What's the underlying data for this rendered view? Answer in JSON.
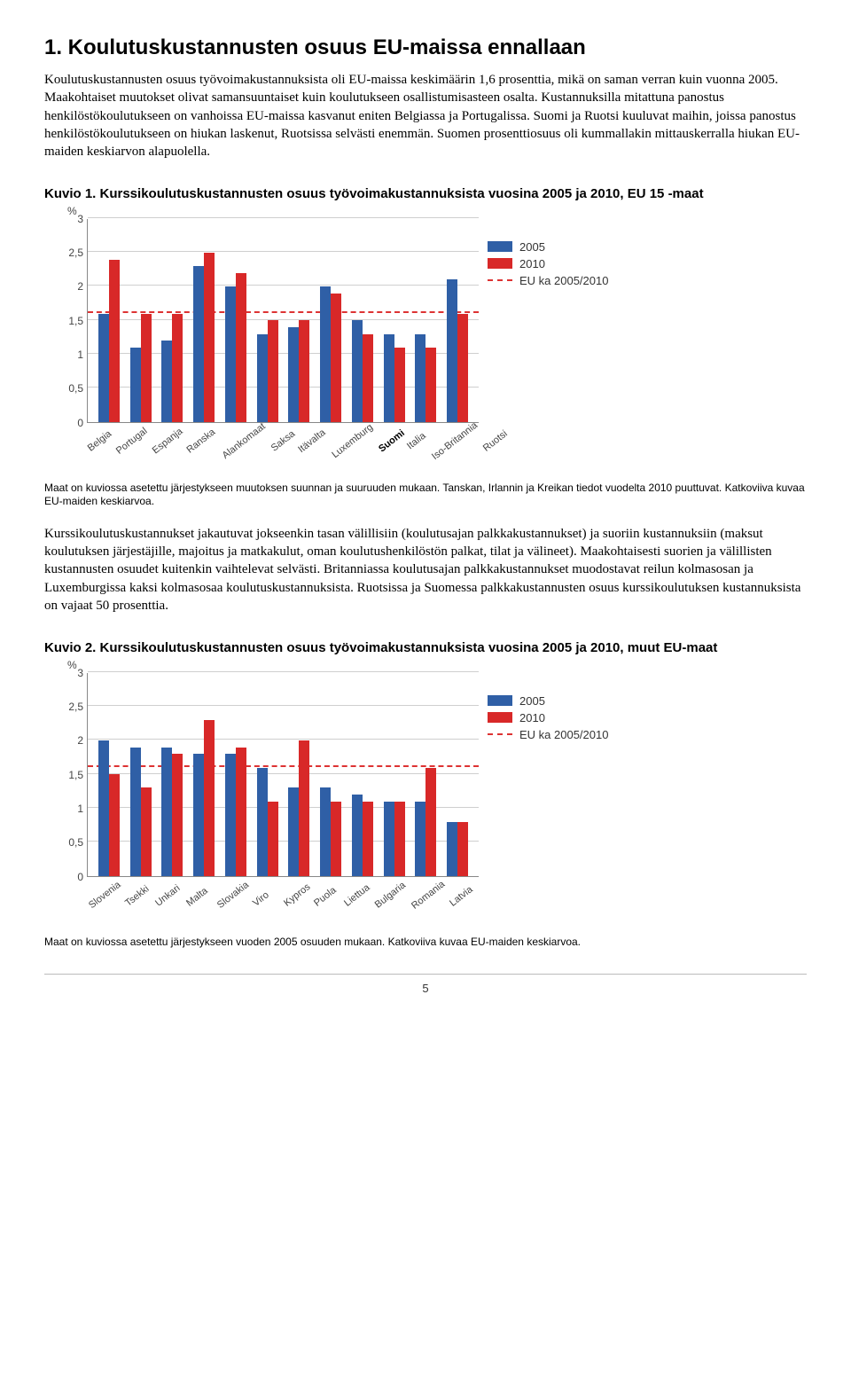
{
  "section": {
    "title": "1. Koulutuskustannusten osuus EU-maissa ennallaan",
    "para1": "Koulutuskustannusten osuus työvoimakustannuksista oli EU-maissa keskimäärin 1,6 prosenttia, mikä on saman verran kuin vuonna 2005. Maakohtaiset muutokset olivat samansuuntaiset kuin koulutukseen osallistumisasteen osalta. Kustannuksilla mitattuna panostus henkilöstökoulutukseen on vanhoissa EU-maissa kasvanut eniten Belgiassa ja Portugalissa. Suomi ja Ruotsi kuuluvat maihin, joissa panostus henkilöstökoulutukseen on hiukan laskenut, Ruotsissa selvästi enemmän. Suomen prosenttiosuus oli kummallakin mittauskerralla hiukan EU-maiden keskiarvon alapuolella.",
    "para2": "Kurssikoulutuskustannukset jakautuvat jokseenkin tasan välillisiin (koulutusajan palkkakustannukset) ja suoriin kustannuksiin (maksut koulutuksen järjestäjille, majoitus ja matkakulut, oman koulutushenkilöstön palkat, tilat ja välineet). Maakohtaisesti suorien ja välillisten kustannusten osuudet kuitenkin vaihtelevat selvästi. Britanniassa koulutusajan palkkakustannukset muodostavat reilun kolmasosan ja Luxemburgissa kaksi kolmasosaa koulutuskustannuksista. Ruotsissa ja Suomessa palkkakustannusten osuus kurssikoulutuksen kustannuksista on vajaat 50 prosenttia."
  },
  "fig1": {
    "title": "Kuvio 1. Kurssikoulutuskustannusten osuus työvoimakustannuksista vuosina 2005 ja 2010, EU 15 -maat",
    "caption": "Maat on kuviossa asetettu järjestykseen muutoksen suunnan ja suuruuden mukaan. Tanskan, Irlannin ja Kreikan tiedot vuodelta 2010 puuttuvat. Katkoviiva kuvaa EU-maiden keskiarvoa.",
    "ylabel": "%",
    "ymax": 3,
    "ytick_step": 0.5,
    "eu_avg": 1.6,
    "colors": {
      "y2005": "#2f5fa6",
      "y2010": "#d82828"
    },
    "legend": [
      "2005",
      "2010",
      "EU ka 2005/2010"
    ],
    "categories": [
      "Belgia",
      "Portugal",
      "Espanja",
      "Ranska",
      "Alankomaat",
      "Saksa",
      "Itävalta",
      "Luxemburg",
      "Suomi",
      "Italia",
      "Iso-Britannia",
      "Ruotsi"
    ],
    "bold_category": "Suomi",
    "y2005": [
      1.6,
      1.1,
      1.2,
      2.3,
      2.0,
      1.3,
      1.4,
      2.0,
      1.5,
      1.3,
      1.3,
      2.1
    ],
    "y2010": [
      2.4,
      1.6,
      1.6,
      2.5,
      2.2,
      1.5,
      1.5,
      1.9,
      1.3,
      1.1,
      1.1,
      1.6
    ]
  },
  "fig2": {
    "title": "Kuvio 2. Kurssikoulutuskustannusten osuus työvoimakustannuksista vuosina 2005 ja 2010, muut EU-maat",
    "caption": "Maat on kuviossa asetettu järjestykseen vuoden 2005 osuuden mukaan. Katkoviiva kuvaa EU-maiden keskiarvoa.",
    "ylabel": "%",
    "ymax": 3,
    "ytick_step": 0.5,
    "eu_avg": 1.6,
    "colors": {
      "y2005": "#2f5fa6",
      "y2010": "#d82828"
    },
    "legend": [
      "2005",
      "2010",
      "EU ka 2005/2010"
    ],
    "categories": [
      "Slovenia",
      "Tsekki",
      "Unkari",
      "Malta",
      "Slovakia",
      "Viro",
      "Kypros",
      "Puola",
      "Liettua",
      "Bulgaria",
      "Romania",
      "Latvia"
    ],
    "bold_category": "",
    "y2005": [
      2.0,
      1.9,
      1.9,
      1.8,
      1.8,
      1.6,
      1.3,
      1.3,
      1.2,
      1.1,
      1.1,
      0.8
    ],
    "y2010": [
      1.5,
      1.3,
      1.8,
      2.3,
      1.9,
      1.1,
      2.0,
      1.1,
      1.1,
      1.1,
      1.6,
      0.8
    ]
  },
  "page_number": "5"
}
